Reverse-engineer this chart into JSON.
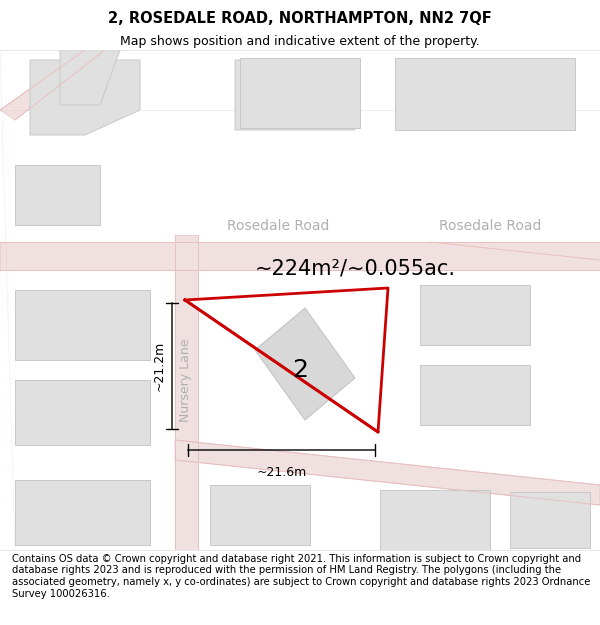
{
  "title_line1": "2, ROSEDALE ROAD, NORTHAMPTON, NN2 7QF",
  "title_line2": "Map shows position and indicative extent of the property.",
  "disclaimer": "Contains OS data © Crown copyright and database right 2021. This information is subject to Crown copyright and database rights 2023 and is reproduced with the permission of HM Land Registry. The polygons (including the associated geometry, namely x, y co-ordinates) are subject to Crown copyright and database rights 2023 Ordnance Survey 100026316.",
  "area_label": "~224m²/~0.055ac.",
  "dim_vertical": "~21.2m",
  "dim_horizontal": "~21.6m",
  "property_number": "2",
  "street_label1": "Rosedale Road",
  "street_label2": "Rosedale Road",
  "street_label3": "Nursery Lane",
  "road_color": "#e8c0c0",
  "road_fill": "#f0e0e0",
  "building_fill": "#e0e0e0",
  "building_stroke": "#c8c8c8",
  "map_bg": "#f8f8f8",
  "highlight_stroke": "#cc0000",
  "title_fontsize": 10.5,
  "subtitle_fontsize": 9,
  "disclaimer_fontsize": 7.2,
  "street_fontsize": 10,
  "area_fontsize": 15,
  "dim_fontsize": 9
}
